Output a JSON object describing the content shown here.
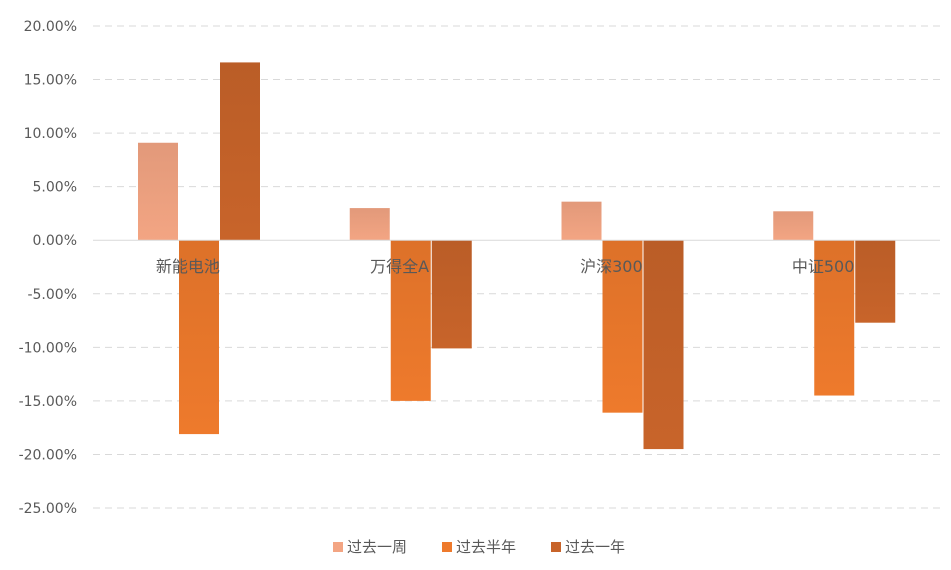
{
  "chart_data": {
    "type": "bar",
    "title": "",
    "xlabel": "",
    "ylabel": "",
    "categories": [
      "新能电池",
      "万得全A",
      "沪深300",
      "中证500"
    ],
    "series": [
      {
        "name": "过去一周",
        "values": [
          9.1,
          3.0,
          3.6,
          2.7
        ],
        "color": "#f3a583"
      },
      {
        "name": "过去半年",
        "values": [
          -18.1,
          -15.0,
          -16.1,
          -14.5
        ],
        "color": "#ee7a2c"
      },
      {
        "name": "过去一年",
        "values": [
          16.6,
          -10.1,
          -19.5,
          -7.7
        ],
        "color": "#c8642a"
      }
    ],
    "ylim": [
      -25,
      20
    ],
    "ytick_step": 5,
    "ytick_labels": [
      "20.00%",
      "15.00%",
      "10.00%",
      "5.00%",
      "0.00%",
      "-5.00%",
      "-10.00%",
      "-15.00%",
      "-20.00%",
      "-25.00%"
    ],
    "grid": true,
    "legend_position": "bottom"
  }
}
